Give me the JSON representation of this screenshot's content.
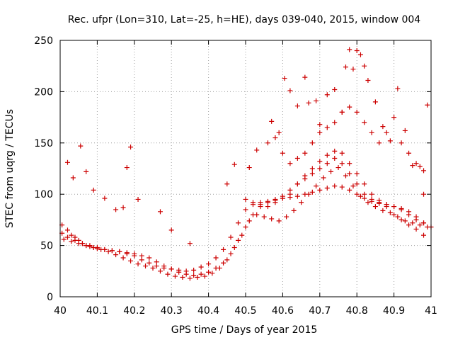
{
  "chart_data": {
    "type": "scatter",
    "title": "Rec. ufpr (Lon=310, Lat=-25, h=HE), days 039-040, 2015, window 004",
    "xlabel": "GPS time / Days of year 2015",
    "ylabel": "STEC from uqrg / TECUs",
    "xlim": [
      40,
      41
    ],
    "ylim": [
      0,
      250
    ],
    "xticks": [
      40,
      40.1,
      40.2,
      40.3,
      40.4,
      40.5,
      40.6,
      40.7,
      40.8,
      40.9,
      41
    ],
    "xtick_labels": [
      "40",
      "40.1",
      "40.2",
      "40.3",
      "40.4",
      "40.5",
      "40.6",
      "40.7",
      "40.8",
      "40.9",
      "41"
    ],
    "yticks": [
      0,
      50,
      100,
      150,
      200,
      250
    ],
    "ytick_labels": [
      "0",
      "50",
      "100",
      "150",
      "200",
      "250"
    ],
    "grid": true,
    "marker": "+",
    "color": "#cc0000",
    "series": [
      {
        "name": "STEC",
        "x": [
          40.005,
          40.02,
          40.03,
          40.04,
          40.05,
          40.06,
          40.07,
          40.08,
          40.09,
          40.1,
          40.12,
          40.14,
          40.16,
          40.18,
          40.2,
          40.22,
          40.24,
          40.26,
          40.28,
          40.3,
          40.32,
          40.34,
          40.36,
          40.38,
          40.4,
          40.42,
          40.44,
          40.46,
          40.48,
          40.5,
          40.52,
          40.54,
          40.56,
          40.58,
          40.6,
          40.62,
          40.64,
          40.66,
          40.68,
          40.7,
          40.72,
          40.74,
          40.76,
          40.78,
          40.8,
          40.82,
          40.84,
          40.86,
          40.88,
          40.9,
          40.92,
          40.94,
          40.96,
          40.98,
          41.0,
          40.005,
          40.02,
          40.04,
          40.06,
          40.08,
          40.1,
          40.12,
          40.14,
          40.16,
          40.18,
          40.2,
          40.22,
          40.24,
          40.26,
          40.28,
          40.3,
          40.32,
          40.34,
          40.36,
          40.38,
          40.4,
          40.42,
          40.44,
          40.46,
          40.48,
          40.5,
          40.52,
          40.54,
          40.56,
          40.58,
          40.6,
          40.62,
          40.64,
          40.66,
          40.68,
          40.7,
          40.72,
          40.74,
          40.76,
          40.78,
          40.8,
          40.82,
          40.84,
          40.86,
          40.88,
          40.9,
          40.92,
          40.94,
          40.96,
          40.98,
          40.01,
          40.03,
          40.05,
          40.07,
          40.09,
          40.11,
          40.13,
          40.15,
          40.17,
          40.19,
          40.21,
          40.23,
          40.25,
          40.27,
          40.29,
          40.31,
          40.33,
          40.35,
          40.37,
          40.39,
          40.41,
          40.43,
          40.45,
          40.47,
          40.49,
          40.51,
          40.53,
          40.55,
          40.57,
          40.59,
          40.61,
          40.63,
          40.65,
          40.67,
          40.69,
          40.71,
          40.73,
          40.75,
          40.77,
          40.79,
          40.81,
          40.83,
          40.85,
          40.87,
          40.89,
          40.91,
          40.93,
          40.95,
          40.97,
          40.99,
          40.02,
          40.035,
          40.055,
          40.07,
          40.09,
          40.12,
          40.15,
          40.17,
          40.18,
          40.19,
          40.21,
          40.27,
          40.3,
          40.35,
          40.45,
          40.47,
          40.51,
          40.53,
          40.57,
          40.59,
          40.605,
          40.62,
          40.64,
          40.66,
          40.67,
          40.69,
          40.7,
          40.72,
          40.74,
          40.76,
          40.77,
          40.78,
          40.79,
          40.8,
          40.81,
          40.82,
          40.83,
          40.85,
          40.87,
          40.89,
          40.91,
          40.93,
          40.95,
          40.97,
          40.98,
          40.99,
          40.56,
          40.58,
          40.6,
          40.62,
          40.64,
          40.66,
          40.68,
          40.7,
          40.72,
          40.74,
          40.76,
          40.78,
          40.8,
          40.82,
          40.84,
          40.86,
          40.88,
          40.9,
          40.92,
          40.94,
          40.96,
          40.98,
          40.5,
          40.52,
          40.54,
          40.56,
          40.58,
          40.6,
          40.62,
          40.64,
          40.66,
          40.68,
          40.7,
          40.72,
          40.74,
          40.76,
          40.78,
          40.8,
          40.82,
          40.84,
          40.86,
          40.88,
          40.9,
          40.92,
          40.94,
          40.96,
          40.98
        ],
        "y": [
          70,
          65,
          60,
          58,
          55,
          52,
          50,
          49,
          48,
          47,
          46,
          45,
          44,
          43,
          42,
          40,
          38,
          34,
          30,
          27,
          24,
          22,
          21,
          22,
          24,
          28,
          33,
          42,
          55,
          68,
          80,
          88,
          92,
          95,
          96,
          97,
          98,
          100,
          102,
          104,
          106,
          108,
          107,
          104,
          100,
          96,
          93,
          91,
          90,
          88,
          86,
          83,
          78,
          72,
          68,
          62,
          58,
          55,
          52,
          50,
          48,
          46,
          45,
          44,
          42,
          40,
          36,
          33,
          30,
          28,
          27,
          26,
          25,
          26,
          29,
          32,
          38,
          46,
          58,
          72,
          85,
          90,
          92,
          93,
          94,
          98,
          104,
          110,
          118,
          125,
          132,
          138,
          142,
          140,
          130,
          120,
          110,
          100,
          94,
          88,
          80,
          75,
          70,
          66,
          60,
          56,
          54,
          52,
          50,
          48,
          46,
          44,
          41,
          38,
          35,
          32,
          30,
          28,
          25,
          22,
          20,
          19,
          18,
          19,
          20,
          23,
          28,
          36,
          48,
          60,
          74,
          80,
          78,
          76,
          74,
          78,
          84,
          92,
          100,
          108,
          116,
          122,
          126,
          118,
          108,
          98,
          92,
          88,
          84,
          82,
          78,
          74,
          72,
          70,
          68,
          131,
          116,
          147,
          122,
          104,
          96,
          85,
          87,
          126,
          146,
          95,
          83,
          65,
          52,
          110,
          129,
          126,
          143,
          171,
          160,
          213,
          201,
          186,
          214,
          189,
          191,
          168,
          197,
          202,
          180,
          224,
          241,
          222,
          240,
          236,
          225,
          211,
          190,
          166,
          152,
          203,
          162,
          128,
          127,
          123,
          187,
          150,
          155,
          140,
          130,
          135,
          140,
          150,
          160,
          165,
          170,
          180,
          185,
          180,
          170,
          160,
          150,
          160,
          175,
          150,
          140,
          130,
          100,
          95,
          92,
          90,
          88,
          92,
          96,
          100,
          110,
          115,
          120,
          125,
          130,
          135,
          130,
          120,
          110,
          100,
          95,
          92,
          90,
          88,
          85,
          80,
          75,
          72
        ]
      }
    ]
  }
}
